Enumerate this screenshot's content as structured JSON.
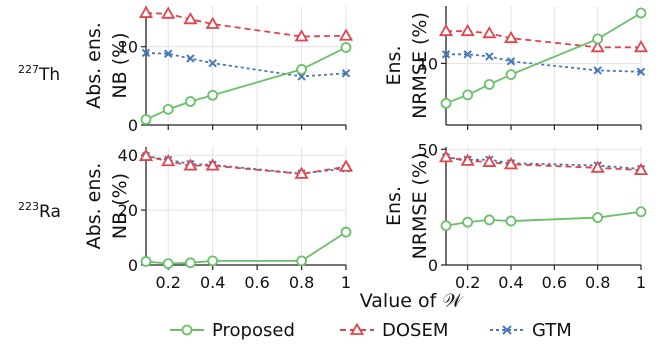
{
  "figure": {
    "xlabel": "Value of 𝒲",
    "rows": [
      {
        "pre": "227",
        "label": "Th"
      },
      {
        "pre": "223",
        "label": "Ra"
      }
    ]
  },
  "legend": [
    "Proposed",
    "DOSEM",
    "GTM"
  ],
  "colors": {
    "Proposed": "#6abf69",
    "DOSEM": "#e0444c",
    "GTM": "#4878b8"
  },
  "chart_data": [
    {
      "type": "line",
      "row": "227Th",
      "ylabel": [
        "Abs. ens.",
        "NB (%)"
      ],
      "x": [
        0.1,
        0.2,
        0.3,
        0.4,
        0.8,
        1
      ],
      "xlim": [
        0.1,
        1
      ],
      "xticks": [
        0.2,
        0.4,
        0.6,
        0.8,
        1
      ],
      "xtick_labels": [
        "",
        "",
        "",
        "",
        ""
      ],
      "ylim": [
        0,
        15.2
      ],
      "yticks": [
        0,
        10
      ],
      "ytick_labels": [
        "0",
        "10"
      ],
      "grid": true,
      "series": [
        {
          "name": "Proposed",
          "values": [
            0.7,
            2.0,
            3.0,
            3.8,
            7.1,
            9.9
          ]
        },
        {
          "name": "DOSEM",
          "values": [
            14.3,
            14.2,
            13.5,
            12.9,
            11.3,
            11.4
          ]
        },
        {
          "name": "GTM",
          "values": [
            9.2,
            9.1,
            8.5,
            7.9,
            6.2,
            6.6
          ]
        }
      ]
    },
    {
      "type": "line",
      "row": "227Th",
      "ylabel": [
        "Ens.",
        "NRMSE (%)"
      ],
      "x": [
        0.1,
        0.2,
        0.3,
        0.4,
        0.8,
        1
      ],
      "xlim": [
        0.1,
        1
      ],
      "xticks": [
        0.2,
        0.4,
        0.6,
        0.8,
        1
      ],
      "xtick_labels": [
        "",
        "",
        "",
        "",
        ""
      ],
      "ylim": [
        1.2,
        18.2
      ],
      "yticks": [
        10
      ],
      "ytick_labels": [
        "10"
      ],
      "grid": true,
      "series": [
        {
          "name": "Proposed",
          "values": [
            4.3,
            5.5,
            7.0,
            8.4,
            13.5,
            17.2
          ]
        },
        {
          "name": "DOSEM",
          "values": [
            14.6,
            14.6,
            14.3,
            13.6,
            12.3,
            12.3
          ]
        },
        {
          "name": "GTM",
          "values": [
            11.3,
            11.3,
            11.0,
            10.3,
            9.0,
            8.8
          ]
        }
      ]
    },
    {
      "type": "line",
      "row": "223Ra",
      "ylabel": [
        "Abs. ens.",
        "NB (%)"
      ],
      "x": [
        0.1,
        0.2,
        0.3,
        0.4,
        0.8,
        1
      ],
      "xlim": [
        0.1,
        1
      ],
      "xticks": [
        0.2,
        0.4,
        0.6,
        0.8,
        1
      ],
      "xtick_labels": [
        "0.2",
        "0.4",
        "0.6",
        "0.8",
        "1"
      ],
      "ylim": [
        0,
        43
      ],
      "yticks": [
        0,
        20,
        40
      ],
      "ytick_labels": [
        "0",
        "20",
        "40"
      ],
      "grid": true,
      "series": [
        {
          "name": "Proposed",
          "values": [
            1.3,
            0.5,
            0.8,
            1.5,
            1.5,
            12.0
          ]
        },
        {
          "name": "DOSEM",
          "values": [
            39.7,
            37.8,
            36.2,
            36.2,
            33.2,
            35.8
          ]
        },
        {
          "name": "GTM",
          "values": [
            39.7,
            38.3,
            36.8,
            36.5,
            33.3,
            35.2
          ]
        }
      ]
    },
    {
      "type": "line",
      "row": "223Ra",
      "ylabel": [
        "Ens.",
        "NRMSE (%)"
      ],
      "x": [
        0.1,
        0.2,
        0.3,
        0.4,
        0.8,
        1
      ],
      "xlim": [
        0.1,
        1
      ],
      "xticks": [
        0.2,
        0.4,
        0.6,
        0.8,
        1
      ],
      "xtick_labels": [
        "0.2",
        "0.4",
        "0.6",
        "0.8",
        "1"
      ],
      "ylim": [
        0,
        51
      ],
      "yticks": [
        0,
        50
      ],
      "ytick_labels": [
        "0",
        "50"
      ],
      "grid": true,
      "series": [
        {
          "name": "Proposed",
          "values": [
            17.0,
            18.5,
            19.5,
            19.0,
            20.5,
            23.0
          ]
        },
        {
          "name": "DOSEM",
          "values": [
            46.5,
            45.0,
            44.5,
            43.5,
            42.0,
            41.0
          ]
        },
        {
          "name": "GTM",
          "values": [
            46.5,
            45.5,
            45.5,
            44.0,
            43.0,
            41.5
          ]
        }
      ]
    }
  ]
}
